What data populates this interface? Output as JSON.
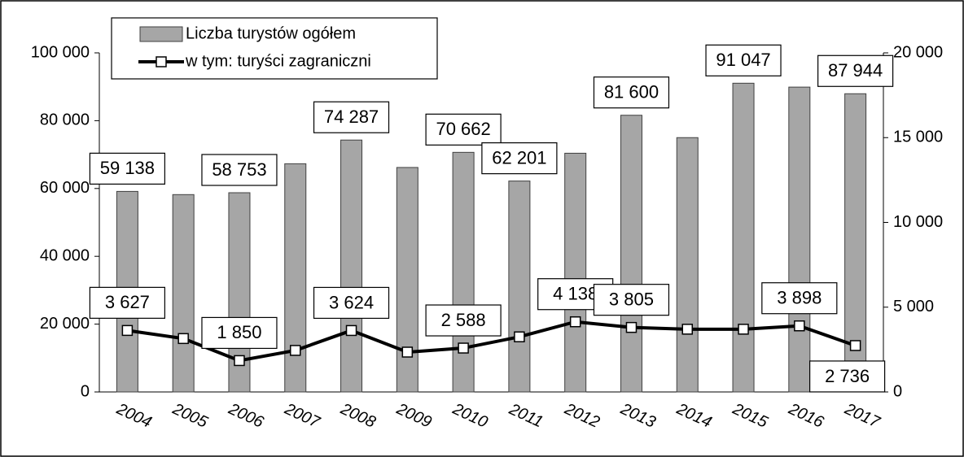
{
  "chart_data": {
    "type": "bar_line",
    "categories": [
      "2004",
      "2005",
      "2006",
      "2007",
      "2008",
      "2009",
      "2010",
      "2011",
      "2012",
      "2013",
      "2014",
      "2015",
      "2016",
      "2017"
    ],
    "series": [
      {
        "name": "Liczba turystów ogółem",
        "type": "bar",
        "color": "#a6a6a6",
        "values": [
          59138,
          58200,
          58753,
          67300,
          74287,
          66200,
          70662,
          62201,
          70400,
          81600,
          75000,
          91047,
          89900,
          87944
        ],
        "value_labels": [
          "59 138",
          null,
          "58 753",
          null,
          "74 287",
          null,
          "70 662",
          "62 201",
          null,
          "81 600",
          null,
          "91 047",
          null,
          "87 944"
        ]
      },
      {
        "name": "w tym: turyści zagraniczni",
        "type": "line",
        "color": "#000000",
        "axis": "y2",
        "values": [
          3627,
          3150,
          1850,
          2450,
          3624,
          2350,
          2588,
          3250,
          4138,
          3805,
          3700,
          3700,
          3898,
          2736
        ],
        "value_labels": [
          "3 627",
          null,
          "1 850",
          null,
          "3 624",
          null,
          "2 588",
          null,
          "4 138",
          "3 805",
          null,
          null,
          "3 898",
          "2 736"
        ]
      }
    ],
    "ylim": [
      0,
      100000
    ],
    "yticks": [
      0,
      {
        "value": 20000,
        "label": "20 000"
      },
      {
        "value": 40000,
        "label": "40 000"
      },
      {
        "value": 60000,
        "label": "60 000"
      },
      {
        "value": 80000,
        "label": "80 000"
      },
      {
        "value": 100000,
        "label": "100 000"
      }
    ],
    "y2lim": [
      0,
      20000
    ],
    "y2ticks": [
      0,
      {
        "value": 5000,
        "label": "5 000"
      },
      {
        "value": 10000,
        "label": "10 000"
      },
      {
        "value": 15000,
        "label": "15 000"
      },
      {
        "value": 20000,
        "label": "20 000"
      }
    ],
    "legend": "top-left"
  }
}
